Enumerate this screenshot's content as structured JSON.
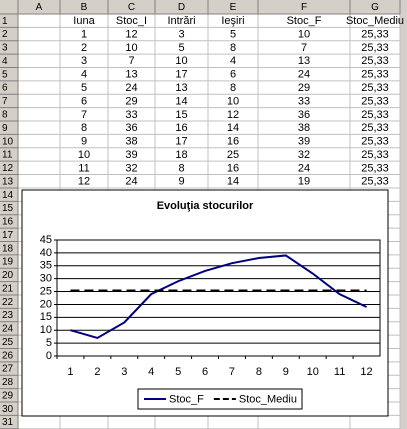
{
  "spreadsheet": {
    "columns": [
      "A",
      "B",
      "C",
      "D",
      "E",
      "F",
      "G"
    ],
    "row_numbers": [
      1,
      2,
      3,
      4,
      5,
      6,
      7,
      8,
      9,
      10,
      11,
      12,
      13,
      14,
      15,
      16,
      17,
      18,
      19,
      20,
      21,
      22,
      23,
      24,
      25,
      26,
      27,
      28,
      29,
      30,
      31
    ],
    "table": {
      "header": [
        "Iuna",
        "Stoc_I",
        "Intrări",
        "Ieşiri",
        "Stoc_F",
        "Stoc_Mediu"
      ],
      "rows": [
        [
          1,
          12,
          3,
          5,
          10,
          "25,33"
        ],
        [
          2,
          10,
          5,
          8,
          7,
          "25,33"
        ],
        [
          3,
          7,
          10,
          4,
          13,
          "25,33"
        ],
        [
          4,
          13,
          17,
          6,
          24,
          "25,33"
        ],
        [
          5,
          24,
          13,
          8,
          29,
          "25,33"
        ],
        [
          6,
          29,
          14,
          10,
          33,
          "25,33"
        ],
        [
          7,
          33,
          15,
          12,
          36,
          "25,33"
        ],
        [
          8,
          36,
          16,
          14,
          38,
          "25,33"
        ],
        [
          9,
          38,
          17,
          16,
          39,
          "25,33"
        ],
        [
          10,
          39,
          18,
          25,
          32,
          "25,33"
        ],
        [
          11,
          32,
          8,
          16,
          24,
          "25,33"
        ],
        [
          12,
          24,
          9,
          14,
          19,
          "25,33"
        ]
      ]
    }
  },
  "chart_data": {
    "type": "line",
    "title": "Evoluţia stocurilor",
    "categories": [
      1,
      2,
      3,
      4,
      5,
      6,
      7,
      8,
      9,
      10,
      11,
      12
    ],
    "series": [
      {
        "name": "Stoc_F",
        "color": "#000080",
        "style": "solid",
        "values": [
          10,
          7,
          13,
          24,
          29,
          33,
          36,
          38,
          39,
          32,
          24,
          19
        ]
      },
      {
        "name": "Stoc_Mediu",
        "color": "#000000",
        "style": "dashed",
        "values": [
          25.33,
          25.33,
          25.33,
          25.33,
          25.33,
          25.33,
          25.33,
          25.33,
          25.33,
          25.33,
          25.33,
          25.33
        ]
      }
    ],
    "ylim": [
      0,
      45
    ],
    "yticks": [
      0,
      5,
      10,
      15,
      20,
      25,
      30,
      35,
      40,
      45
    ],
    "grid": true,
    "legend": "bottom"
  }
}
